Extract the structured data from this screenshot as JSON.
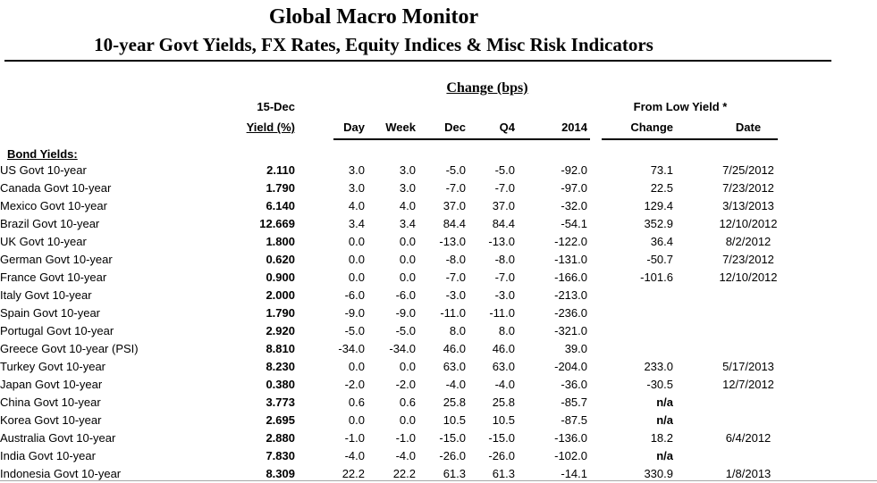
{
  "page": {
    "title": "Global Macro Monitor",
    "subtitle": "10-year Govt Yields, FX Rates, Equity Indices & Misc Risk Indicators"
  },
  "colors": {
    "text": "#000000",
    "divider": "#000000",
    "bottom_divider": "#a6a6a6",
    "background": "#ffffff"
  },
  "table": {
    "group_header": "Change (bps)",
    "from_low_header": "From Low Yield *",
    "col_asof": "15-Dec",
    "col_yield": "Yield (%)",
    "col_day": "Day",
    "col_week": "Week",
    "col_dec": "Dec",
    "col_q4": "Q4",
    "col_2014": "2014",
    "col_change": "Change",
    "col_date": "Date",
    "section_label": "Bond Yields:",
    "rows": [
      {
        "label": "US Govt 10-year",
        "yield": "2.110",
        "day": "3.0",
        "week": "3.0",
        "dec": "-5.0",
        "q4": "-5.0",
        "y2014": "-92.0",
        "change": "73.1",
        "date": "7/25/2012"
      },
      {
        "label": "Canada Govt 10-year",
        "yield": "1.790",
        "day": "3.0",
        "week": "3.0",
        "dec": "-7.0",
        "q4": "-7.0",
        "y2014": "-97.0",
        "change": "22.5",
        "date": "7/23/2012"
      },
      {
        "label": "Mexico Govt 10-year",
        "yield": "6.140",
        "day": "4.0",
        "week": "4.0",
        "dec": "37.0",
        "q4": "37.0",
        "y2014": "-32.0",
        "change": "129.4",
        "date": "3/13/2013"
      },
      {
        "label": "Brazil Govt 10-year",
        "yield": "12.669",
        "day": "3.4",
        "week": "3.4",
        "dec": "84.4",
        "q4": "84.4",
        "y2014": "-54.1",
        "change": "352.9",
        "date": "12/10/2012"
      },
      {
        "label": "UK Govt 10-year",
        "yield": "1.800",
        "day": "0.0",
        "week": "0.0",
        "dec": "-13.0",
        "q4": "-13.0",
        "y2014": "-122.0",
        "change": "36.4",
        "date": "8/2/2012"
      },
      {
        "label": "German Govt 10-year",
        "yield": "0.620",
        "day": "0.0",
        "week": "0.0",
        "dec": "-8.0",
        "q4": "-8.0",
        "y2014": "-131.0",
        "change": "-50.7",
        "date": "7/23/2012"
      },
      {
        "label": "France Govt 10-year",
        "yield": "0.900",
        "day": "0.0",
        "week": "0.0",
        "dec": "-7.0",
        "q4": "-7.0",
        "y2014": "-166.0",
        "change": "-101.6",
        "date": "12/10/2012"
      },
      {
        "label": "Italy Govt 10-year",
        "yield": "2.000",
        "day": "-6.0",
        "week": "-6.0",
        "dec": "-3.0",
        "q4": "-3.0",
        "y2014": "-213.0",
        "change": "",
        "date": ""
      },
      {
        "label": "Spain Govt 10-year",
        "yield": "1.790",
        "day": "-9.0",
        "week": "-9.0",
        "dec": "-11.0",
        "q4": "-11.0",
        "y2014": "-236.0",
        "change": "",
        "date": ""
      },
      {
        "label": "Portugal Govt 10-year",
        "yield": "2.920",
        "day": "-5.0",
        "week": "-5.0",
        "dec": "8.0",
        "q4": "8.0",
        "y2014": "-321.0",
        "change": "",
        "date": ""
      },
      {
        "label": "Greece Govt 10-year (PSI)",
        "yield": "8.810",
        "day": "-34.0",
        "week": "-34.0",
        "dec": "46.0",
        "q4": "46.0",
        "y2014": "39.0",
        "change": "",
        "date": ""
      },
      {
        "label": "Turkey Govt 10-year",
        "yield": "8.230",
        "day": "0.0",
        "week": "0.0",
        "dec": "63.0",
        "q4": "63.0",
        "y2014": "-204.0",
        "change": "233.0",
        "date": "5/17/2013"
      },
      {
        "label": "Japan Govt 10-year",
        "yield": "0.380",
        "day": "-2.0",
        "week": "-2.0",
        "dec": "-4.0",
        "q4": "-4.0",
        "y2014": "-36.0",
        "change": "-30.5",
        "date": "12/7/2012"
      },
      {
        "label": "China Govt 10-year",
        "yield": "3.773",
        "day": "0.6",
        "week": "0.6",
        "dec": "25.8",
        "q4": "25.8",
        "y2014": "-85.7",
        "change": "n/a",
        "date": ""
      },
      {
        "label": "Korea Govt 10-year",
        "yield": "2.695",
        "day": "0.0",
        "week": "0.0",
        "dec": "10.5",
        "q4": "10.5",
        "y2014": "-87.5",
        "change": "n/a",
        "date": ""
      },
      {
        "label": "Australia Govt 10-year",
        "yield": "2.880",
        "day": "-1.0",
        "week": "-1.0",
        "dec": "-15.0",
        "q4": "-15.0",
        "y2014": "-136.0",
        "change": "18.2",
        "date": "6/4/2012"
      },
      {
        "label": "India Govt 10-year",
        "yield": "7.830",
        "day": "-4.0",
        "week": "-4.0",
        "dec": "-26.0",
        "q4": "-26.0",
        "y2014": "-102.0",
        "change": "n/a",
        "date": ""
      },
      {
        "label": "Indonesia Govt 10-year",
        "yield": "8.309",
        "day": "22.2",
        "week": "22.2",
        "dec": "61.3",
        "q4": "61.3",
        "y2014": "-14.1",
        "change": "330.9",
        "date": "1/8/2013"
      }
    ]
  }
}
